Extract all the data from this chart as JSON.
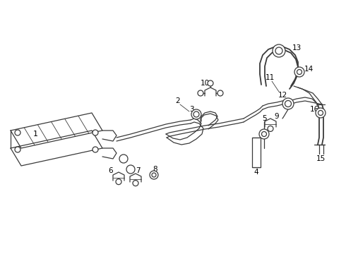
{
  "background_color": "#ffffff",
  "line_color": "#3a3a3a",
  "fig_width": 4.9,
  "fig_height": 3.6,
  "dpi": 100
}
